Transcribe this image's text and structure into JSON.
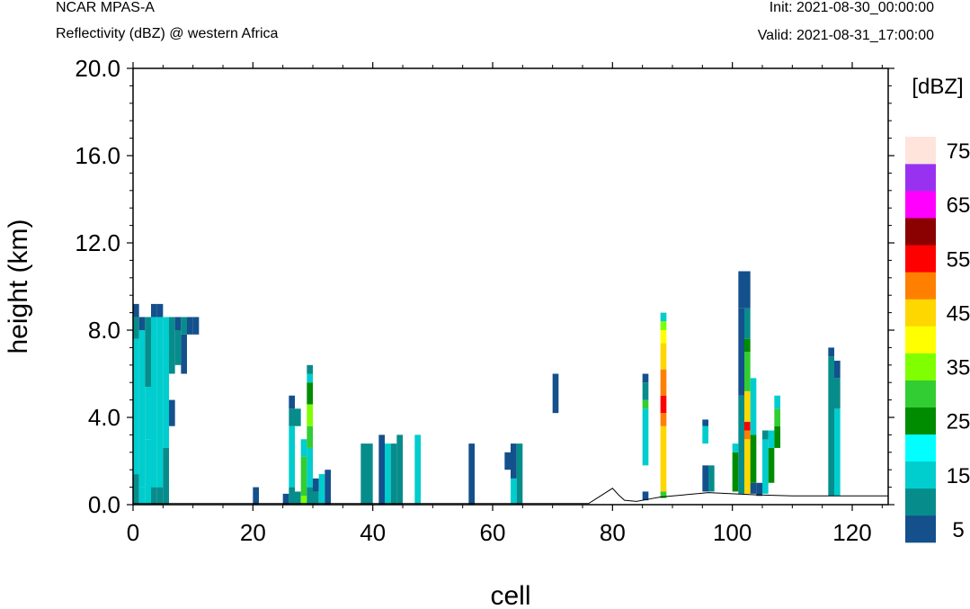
{
  "header": {
    "model": "NCAR MPAS-A",
    "field": "Reflectivity (dBZ) @ western Africa",
    "init": "Init: 2021-08-30_00:00:00",
    "valid": "Valid: 2021-08-31_17:00:00"
  },
  "chart_data": {
    "type": "heatmap",
    "xlabel": "cell",
    "ylabel": "height (km)",
    "xlim": [
      0,
      126
    ],
    "ylim": [
      0,
      20
    ],
    "x_ticks": [
      0,
      20,
      40,
      60,
      80,
      100,
      120
    ],
    "y_ticks": [
      0.0,
      4.0,
      8.0,
      12.0,
      16.0,
      20.0
    ],
    "y_tick_labels": [
      "0.0",
      "4.0",
      "8.0",
      "12.0",
      "16.0",
      "20.0"
    ],
    "grid": false,
    "colorbar": {
      "unit_label": "[dBZ]",
      "levels": [
        5,
        10,
        15,
        20,
        25,
        30,
        35,
        40,
        45,
        50,
        55,
        60,
        65,
        70,
        75
      ],
      "tick_labels": [
        "5",
        "15",
        "25",
        "35",
        "45",
        "55",
        "65",
        "75"
      ],
      "colors": [
        "#14508c",
        "#078c8c",
        "#00cdcd",
        "#00ffff",
        "#008c00",
        "#32cd32",
        "#7fff00",
        "#ffff00",
        "#ffd700",
        "#ff8000",
        "#ff0000",
        "#8b0000",
        "#ff00ff",
        "#9932f0",
        "#ffe4dc"
      ]
    },
    "terrain_profile": [
      [
        0,
        0.05
      ],
      [
        76,
        0.05
      ],
      [
        78,
        0.4
      ],
      [
        80,
        0.75
      ],
      [
        81,
        0.45
      ],
      [
        82,
        0.2
      ],
      [
        84,
        0.15
      ],
      [
        86,
        0.25
      ],
      [
        88,
        0.35
      ],
      [
        92,
        0.45
      ],
      [
        96,
        0.55
      ],
      [
        100,
        0.5
      ],
      [
        104,
        0.45
      ],
      [
        110,
        0.4
      ],
      [
        120,
        0.4
      ],
      [
        126,
        0.4
      ]
    ],
    "reflectivity_cells": [
      {
        "x": [
          0,
          1
        ],
        "y": [
          0,
          1.4
        ],
        "dbz": 10
      },
      {
        "x": [
          0,
          1
        ],
        "y": [
          1.4,
          7.6
        ],
        "dbz": 15
      },
      {
        "x": [
          0,
          1
        ],
        "y": [
          7.6,
          8.6
        ],
        "dbz": 10
      },
      {
        "x": [
          0,
          1
        ],
        "y": [
          8.6,
          9.2
        ],
        "dbz": 5
      },
      {
        "x": [
          1,
          2
        ],
        "y": [
          0,
          0.8
        ],
        "dbz": 15
      },
      {
        "x": [
          1,
          2
        ],
        "y": [
          0.8,
          8.0
        ],
        "dbz": 15
      },
      {
        "x": [
          1,
          2
        ],
        "y": [
          8.0,
          8.6
        ],
        "dbz": 5
      },
      {
        "x": [
          2,
          3
        ],
        "y": [
          0,
          3.0
        ],
        "dbz": 15
      },
      {
        "x": [
          2,
          3
        ],
        "y": [
          3.0,
          5.4
        ],
        "dbz": 15
      },
      {
        "x": [
          2,
          3
        ],
        "y": [
          5.4,
          8.6
        ],
        "dbz": 10
      },
      {
        "x": [
          3,
          4
        ],
        "y": [
          0,
          0.8
        ],
        "dbz": 10
      },
      {
        "x": [
          3,
          4
        ],
        "y": [
          0.8,
          8.6
        ],
        "dbz": 15
      },
      {
        "x": [
          3,
          4
        ],
        "y": [
          8.6,
          9.2
        ],
        "dbz": 5
      },
      {
        "x": [
          4,
          5
        ],
        "y": [
          0,
          0.8
        ],
        "dbz": 10
      },
      {
        "x": [
          4,
          5
        ],
        "y": [
          0.8,
          8.6
        ],
        "dbz": 15
      },
      {
        "x": [
          4,
          5
        ],
        "y": [
          8.6,
          9.2
        ],
        "dbz": 5
      },
      {
        "x": [
          5,
          6
        ],
        "y": [
          0,
          2.6
        ],
        "dbz": 10
      },
      {
        "x": [
          5,
          6
        ],
        "y": [
          2.6,
          8.6
        ],
        "dbz": 15
      },
      {
        "x": [
          6,
          7
        ],
        "y": [
          3.6,
          4.8
        ],
        "dbz": 5
      },
      {
        "x": [
          6,
          7
        ],
        "y": [
          6.0,
          8.0
        ],
        "dbz": 10
      },
      {
        "x": [
          6,
          7
        ],
        "y": [
          8.0,
          8.6
        ],
        "dbz": 10
      },
      {
        "x": [
          7,
          8
        ],
        "y": [
          6.4,
          8.0
        ],
        "dbz": 10
      },
      {
        "x": [
          7,
          8
        ],
        "y": [
          8.0,
          8.6
        ],
        "dbz": 5
      },
      {
        "x": [
          8,
          9
        ],
        "y": [
          6.0,
          7.8
        ],
        "dbz": 5
      },
      {
        "x": [
          8,
          9
        ],
        "y": [
          7.8,
          8.6
        ],
        "dbz": 10
      },
      {
        "x": [
          9,
          10
        ],
        "y": [
          7.8,
          8.6
        ],
        "dbz": 5
      },
      {
        "x": [
          10,
          11
        ],
        "y": [
          7.8,
          8.6
        ],
        "dbz": 5
      },
      {
        "x": [
          20,
          21
        ],
        "y": [
          0,
          0.8
        ],
        "dbz": 5
      },
      {
        "x": [
          25,
          26
        ],
        "y": [
          0,
          0.5
        ],
        "dbz": 5
      },
      {
        "x": [
          26,
          27
        ],
        "y": [
          0,
          0.8
        ],
        "dbz": 10
      },
      {
        "x": [
          26,
          27
        ],
        "y": [
          0.8,
          3.6
        ],
        "dbz": 15
      },
      {
        "x": [
          26,
          27
        ],
        "y": [
          3.6,
          4.4
        ],
        "dbz": 10
      },
      {
        "x": [
          26,
          27
        ],
        "y": [
          4.4,
          5.0
        ],
        "dbz": 5
      },
      {
        "x": [
          27,
          28
        ],
        "y": [
          0,
          0.6
        ],
        "dbz": 10
      },
      {
        "x": [
          27,
          28
        ],
        "y": [
          3.6,
          4.4
        ],
        "dbz": 10
      },
      {
        "x": [
          28,
          29
        ],
        "y": [
          0,
          0.4
        ],
        "dbz": 35
      },
      {
        "x": [
          28,
          29
        ],
        "y": [
          0.4,
          2.2
        ],
        "dbz": 30
      },
      {
        "x": [
          28,
          29
        ],
        "y": [
          2.2,
          3.0
        ],
        "dbz": 15
      },
      {
        "x": [
          29,
          30
        ],
        "y": [
          0,
          0.8
        ],
        "dbz": 10
      },
      {
        "x": [
          29,
          30
        ],
        "y": [
          0.8,
          2.6
        ],
        "dbz": 15
      },
      {
        "x": [
          29,
          30
        ],
        "y": [
          2.6,
          3.6
        ],
        "dbz": 30
      },
      {
        "x": [
          29,
          30
        ],
        "y": [
          3.6,
          4.6
        ],
        "dbz": 35
      },
      {
        "x": [
          29,
          30
        ],
        "y": [
          4.6,
          5.6
        ],
        "dbz": 25
      },
      {
        "x": [
          29,
          30
        ],
        "y": [
          5.6,
          6.0
        ],
        "dbz": 15
      },
      {
        "x": [
          29,
          30
        ],
        "y": [
          6.0,
          6.4
        ],
        "dbz": 10
      },
      {
        "x": [
          30,
          31
        ],
        "y": [
          0,
          0.6
        ],
        "dbz": 10
      },
      {
        "x": [
          30,
          31
        ],
        "y": [
          0.6,
          1.2
        ],
        "dbz": 5
      },
      {
        "x": [
          31,
          32
        ],
        "y": [
          0,
          1.4
        ],
        "dbz": 15
      },
      {
        "x": [
          32,
          33
        ],
        "y": [
          0,
          1.6
        ],
        "dbz": 5
      },
      {
        "x": [
          38,
          39
        ],
        "y": [
          0,
          2.8
        ],
        "dbz": 10
      },
      {
        "x": [
          39,
          40
        ],
        "y": [
          0,
          2.8
        ],
        "dbz": 10
      },
      {
        "x": [
          41,
          42
        ],
        "y": [
          0,
          3.2
        ],
        "dbz": 5
      },
      {
        "x": [
          42,
          43
        ],
        "y": [
          0,
          2.8
        ],
        "dbz": 15
      },
      {
        "x": [
          43,
          44
        ],
        "y": [
          0,
          2.8
        ],
        "dbz": 10
      },
      {
        "x": [
          44,
          45
        ],
        "y": [
          0,
          3.2
        ],
        "dbz": 10
      },
      {
        "x": [
          47,
          48
        ],
        "y": [
          0,
          3.2
        ],
        "dbz": 15
      },
      {
        "x": [
          56,
          57
        ],
        "y": [
          0,
          2.8
        ],
        "dbz": 5
      },
      {
        "x": [
          62,
          63
        ],
        "y": [
          1.6,
          2.4
        ],
        "dbz": 5
      },
      {
        "x": [
          63,
          64
        ],
        "y": [
          0,
          1.2
        ],
        "dbz": 15
      },
      {
        "x": [
          63,
          64
        ],
        "y": [
          1.2,
          2.8
        ],
        "dbz": 5
      },
      {
        "x": [
          64,
          65
        ],
        "y": [
          0,
          2.8
        ],
        "dbz": 10
      },
      {
        "x": [
          70,
          71
        ],
        "y": [
          4.2,
          6.0
        ],
        "dbz": 5
      },
      {
        "x": [
          85,
          86
        ],
        "y": [
          0.2,
          0.6
        ],
        "dbz": 5
      },
      {
        "x": [
          85,
          86
        ],
        "y": [
          1.8,
          4.4
        ],
        "dbz": 15
      },
      {
        "x": [
          85,
          86
        ],
        "y": [
          4.4,
          4.8
        ],
        "dbz": 30
      },
      {
        "x": [
          85,
          86
        ],
        "y": [
          4.8,
          5.6
        ],
        "dbz": 10
      },
      {
        "x": [
          85,
          86
        ],
        "y": [
          5.6,
          6.0
        ],
        "dbz": 5
      },
      {
        "x": [
          88,
          89
        ],
        "y": [
          0.3,
          0.6
        ],
        "dbz": 30
      },
      {
        "x": [
          88,
          89
        ],
        "y": [
          0.6,
          3.6
        ],
        "dbz": 45
      },
      {
        "x": [
          88,
          89
        ],
        "y": [
          3.6,
          4.2
        ],
        "dbz": 50
      },
      {
        "x": [
          88,
          89
        ],
        "y": [
          4.2,
          5.0
        ],
        "dbz": 55
      },
      {
        "x": [
          88,
          89
        ],
        "y": [
          5.0,
          6.2
        ],
        "dbz": 50
      },
      {
        "x": [
          88,
          89
        ],
        "y": [
          6.2,
          7.4
        ],
        "dbz": 45
      },
      {
        "x": [
          88,
          89
        ],
        "y": [
          7.4,
          8.0
        ],
        "dbz": 40
      },
      {
        "x": [
          88,
          89
        ],
        "y": [
          8.0,
          8.4
        ],
        "dbz": 35
      },
      {
        "x": [
          88,
          89
        ],
        "y": [
          8.4,
          8.8
        ],
        "dbz": 15
      },
      {
        "x": [
          95,
          96
        ],
        "y": [
          0.6,
          1.8
        ],
        "dbz": 5
      },
      {
        "x": [
          95,
          96
        ],
        "y": [
          2.8,
          3.6
        ],
        "dbz": 15
      },
      {
        "x": [
          95,
          96
        ],
        "y": [
          3.6,
          3.9
        ],
        "dbz": 5
      },
      {
        "x": [
          96,
          97
        ],
        "y": [
          0.6,
          1.8
        ],
        "dbz": 10
      },
      {
        "x": [
          100,
          101
        ],
        "y": [
          0.6,
          2.4
        ],
        "dbz": 25
      },
      {
        "x": [
          100,
          101
        ],
        "y": [
          2.4,
          2.8
        ],
        "dbz": 15
      },
      {
        "x": [
          101,
          102
        ],
        "y": [
          0.5,
          5.0
        ],
        "dbz": 10
      },
      {
        "x": [
          101,
          102
        ],
        "y": [
          5.0,
          9.0
        ],
        "dbz": 5
      },
      {
        "x": [
          101,
          102
        ],
        "y": [
          9.0,
          10.7
        ],
        "dbz": 5
      },
      {
        "x": [
          102,
          103
        ],
        "y": [
          0.5,
          3.0
        ],
        "dbz": 45
      },
      {
        "x": [
          102,
          103
        ],
        "y": [
          3.0,
          3.4
        ],
        "dbz": 50
      },
      {
        "x": [
          102,
          103
        ],
        "y": [
          3.4,
          3.8
        ],
        "dbz": 55
      },
      {
        "x": [
          102,
          103
        ],
        "y": [
          3.8,
          5.2
        ],
        "dbz": 45
      },
      {
        "x": [
          102,
          103
        ],
        "y": [
          5.2,
          7.0
        ],
        "dbz": 30
      },
      {
        "x": [
          102,
          103
        ],
        "y": [
          7.0,
          7.6
        ],
        "dbz": 25
      },
      {
        "x": [
          102,
          103
        ],
        "y": [
          7.6,
          9.0
        ],
        "dbz": 10
      },
      {
        "x": [
          102,
          103
        ],
        "y": [
          9.0,
          10.7
        ],
        "dbz": 5
      },
      {
        "x": [
          103,
          104
        ],
        "y": [
          0.5,
          1.0
        ],
        "dbz": 5
      },
      {
        "x": [
          103,
          104
        ],
        "y": [
          1.0,
          3.2
        ],
        "dbz": 25
      },
      {
        "x": [
          103,
          104
        ],
        "y": [
          3.2,
          5.8
        ],
        "dbz": 15
      },
      {
        "x": [
          104,
          105
        ],
        "y": [
          0.4,
          1.0
        ],
        "dbz": 5
      },
      {
        "x": [
          105,
          106
        ],
        "y": [
          0.5,
          3.4
        ],
        "dbz": 15
      },
      {
        "x": [
          105,
          106
        ],
        "y": [
          3.0,
          3.4
        ],
        "dbz": 10
      },
      {
        "x": [
          106,
          107
        ],
        "y": [
          1.0,
          2.6
        ],
        "dbz": 25
      },
      {
        "x": [
          106,
          107
        ],
        "y": [
          2.6,
          3.4
        ],
        "dbz": 15
      },
      {
        "x": [
          107,
          108
        ],
        "y": [
          2.6,
          3.6
        ],
        "dbz": 25
      },
      {
        "x": [
          107,
          108
        ],
        "y": [
          3.6,
          4.4
        ],
        "dbz": 30
      },
      {
        "x": [
          107,
          108
        ],
        "y": [
          4.4,
          5.0
        ],
        "dbz": 15
      },
      {
        "x": [
          116,
          117
        ],
        "y": [
          0.4,
          6.8
        ],
        "dbz": 10
      },
      {
        "x": [
          116,
          117
        ],
        "y": [
          6.8,
          7.2
        ],
        "dbz": 5
      },
      {
        "x": [
          117,
          118
        ],
        "y": [
          0.4,
          4.4
        ],
        "dbz": 15
      },
      {
        "x": [
          117,
          118
        ],
        "y": [
          4.4,
          5.8
        ],
        "dbz": 10
      },
      {
        "x": [
          117,
          118
        ],
        "y": [
          5.8,
          6.6
        ],
        "dbz": 5
      }
    ]
  }
}
